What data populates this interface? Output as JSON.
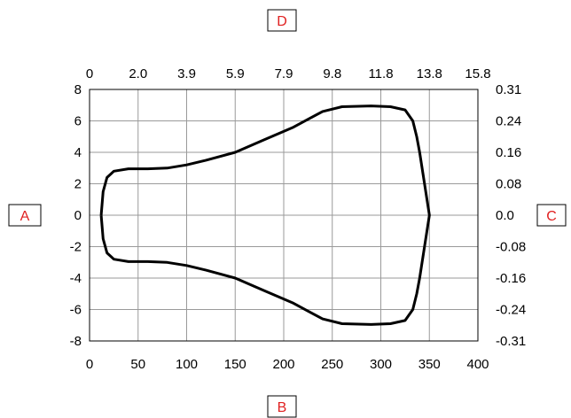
{
  "chart_data": {
    "type": "line",
    "title": "",
    "grid": true,
    "corner_labels": {
      "top": "D",
      "left": "A",
      "right": "C",
      "bottom": "B"
    },
    "x_bottom": {
      "ticks": [
        "0",
        "50",
        "100",
        "150",
        "200",
        "250",
        "300",
        "350",
        "400"
      ],
      "lim": [
        0,
        400
      ]
    },
    "x_top": {
      "ticks": [
        "0",
        "2.0",
        "3.9",
        "5.9",
        "7.9",
        "9.8",
        "11.8",
        "13.8",
        "15.8"
      ]
    },
    "y_left": {
      "ticks": [
        "8",
        "6",
        "4",
        "2",
        "0",
        "-2",
        "-4",
        "-6",
        "-8"
      ],
      "lim": [
        -8,
        8
      ]
    },
    "y_right": {
      "ticks": [
        "0.31",
        "0.24",
        "0.16",
        "0.08",
        "0.0",
        "-0.08",
        "-0.16",
        "-0.24",
        "-0.31"
      ]
    },
    "series": [
      {
        "color": "#000000",
        "x": [
          12,
          14,
          18,
          25,
          40,
          60,
          80,
          100,
          120,
          150,
          180,
          210,
          225,
          240,
          260,
          290,
          310,
          325,
          333,
          337,
          340,
          345,
          350,
          345,
          340,
          337,
          333,
          325,
          310,
          290,
          260,
          240,
          225,
          210,
          180,
          150,
          120,
          100,
          80,
          60,
          40,
          25,
          18,
          14,
          12
        ],
        "y": [
          0,
          1.5,
          2.4,
          2.8,
          2.95,
          2.95,
          3.0,
          3.2,
          3.5,
          4.0,
          4.8,
          5.6,
          6.1,
          6.6,
          6.9,
          6.95,
          6.9,
          6.7,
          6.0,
          5.0,
          4.0,
          2.0,
          0,
          -2.0,
          -4.0,
          -5.0,
          -6.0,
          -6.7,
          -6.9,
          -6.95,
          -6.9,
          -6.6,
          -6.1,
          -5.6,
          -4.8,
          -4.0,
          -3.5,
          -3.2,
          -3.0,
          -2.95,
          -2.95,
          -2.8,
          -2.4,
          -1.5,
          0
        ]
      }
    ]
  }
}
